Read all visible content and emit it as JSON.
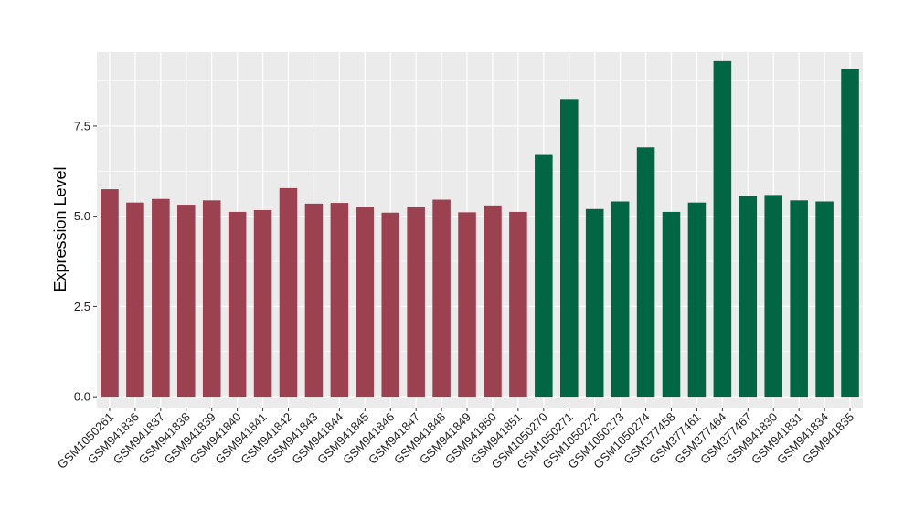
{
  "chart_data": {
    "type": "bar",
    "title": "",
    "xlabel": "",
    "ylabel": "Expression Level",
    "ylim": [
      -0.3,
      9.55
    ],
    "yticks": [
      0.0,
      2.5,
      5.0,
      7.5
    ],
    "ytick_labels": [
      "0.0",
      "2.5",
      "5.0",
      "7.5"
    ],
    "grid": true,
    "legend": "none",
    "categories": [
      "GSM1050261",
      "GSM941836",
      "GSM941837",
      "GSM941838",
      "GSM941839",
      "GSM941840",
      "GSM941841",
      "GSM941842",
      "GSM941843",
      "GSM941844",
      "GSM941845",
      "GSM941846",
      "GSM941847",
      "GSM941848",
      "GSM941849",
      "GSM941850",
      "GSM941851",
      "GSM1050270",
      "GSM1050271",
      "GSM1050272",
      "GSM1050273",
      "GSM1050274",
      "GSM377458",
      "GSM377461",
      "GSM377464",
      "GSM377467",
      "GSM941830",
      "GSM941831",
      "GSM941834",
      "GSM941835"
    ],
    "values": [
      5.75,
      5.38,
      5.48,
      5.32,
      5.44,
      5.12,
      5.17,
      5.78,
      5.35,
      5.37,
      5.26,
      5.1,
      5.25,
      5.46,
      5.11,
      5.3,
      5.12,
      6.7,
      8.25,
      5.2,
      5.41,
      6.91,
      5.12,
      5.38,
      9.3,
      5.56,
      5.59,
      5.44,
      5.41,
      9.08
    ],
    "bar_colors": [
      "#9b4150",
      "#9b4150",
      "#9b4150",
      "#9b4150",
      "#9b4150",
      "#9b4150",
      "#9b4150",
      "#9b4150",
      "#9b4150",
      "#9b4150",
      "#9b4150",
      "#9b4150",
      "#9b4150",
      "#9b4150",
      "#9b4150",
      "#9b4150",
      "#9b4150",
      "#006644",
      "#006644",
      "#006644",
      "#006644",
      "#006644",
      "#006644",
      "#006644",
      "#006644",
      "#006644",
      "#006644",
      "#006644",
      "#006644",
      "#006644"
    ],
    "panel_background": "#ebebeb",
    "grid_color": "#ffffff"
  }
}
